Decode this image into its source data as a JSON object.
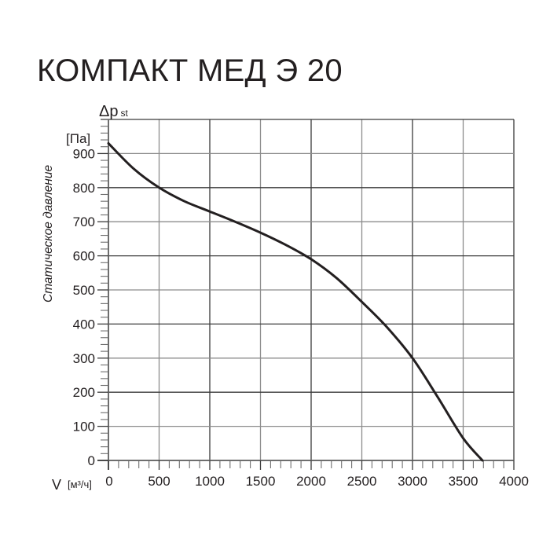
{
  "title": "КОМПАКТ МЕД Э 20",
  "chart_data": {
    "type": "line",
    "title": "КОМПАКТ МЕД Э 20",
    "xlabel": "V",
    "xunit": "[м³/ч]",
    "ylabel": "Статическое давление",
    "ysymbol": "Δp",
    "ysymbol_sub": "st",
    "yunit": "[Па]",
    "xlim": [
      0,
      4000
    ],
    "ylim": [
      0,
      1000
    ],
    "x_ticks": [
      0,
      500,
      1000,
      1500,
      2000,
      2500,
      3000,
      3500,
      4000
    ],
    "x_tick_labels": [
      "0",
      "500",
      "1000",
      "1500",
      "2000",
      "2500",
      "3000",
      "3500",
      "4000"
    ],
    "y_ticks": [
      0,
      100,
      200,
      300,
      400,
      500,
      600,
      700,
      800,
      900
    ],
    "y_tick_labels": [
      "0",
      "100",
      "200",
      "300",
      "400",
      "500",
      "600",
      "700",
      "800",
      "900"
    ],
    "grid": true,
    "legend": null,
    "series": [
      {
        "name": "КОМПАКТ МЕД Э 20",
        "x": [
          0,
          250,
          500,
          750,
          1000,
          1250,
          1500,
          1750,
          2000,
          2250,
          2500,
          2750,
          3000,
          3250,
          3500,
          3690
        ],
        "y": [
          930,
          855,
          800,
          760,
          730,
          700,
          668,
          632,
          590,
          535,
          465,
          390,
          300,
          185,
          65,
          0
        ]
      }
    ],
    "colors": {
      "curve": "#231f20",
      "grid": "#8c8c8c",
      "major_grid": "#3a3a3a",
      "text": "#231f20"
    }
  }
}
